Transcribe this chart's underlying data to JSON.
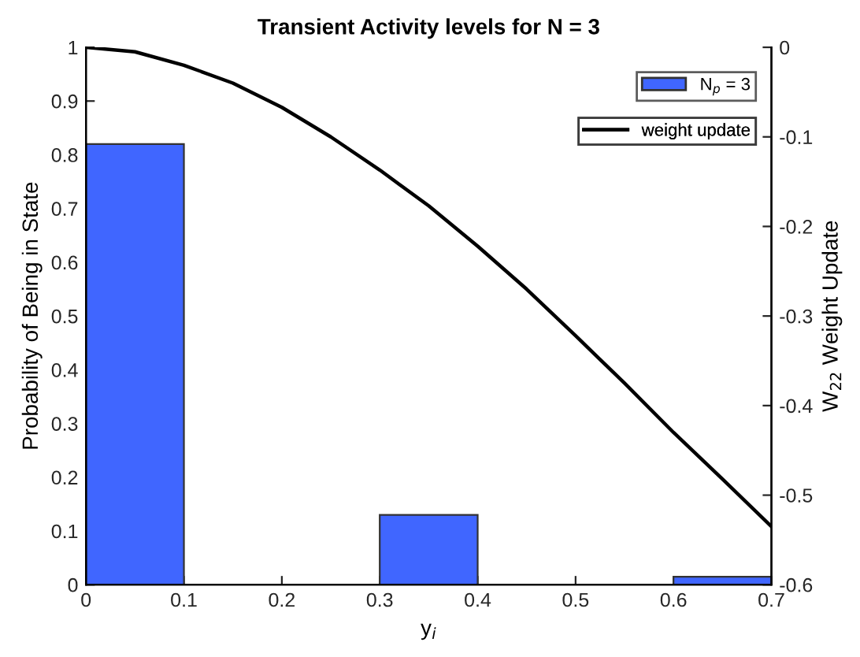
{
  "chart_data": {
    "type": "histogram",
    "title": "Transient Activity levels for N = 3",
    "xlabel": "y$_{i}$",
    "ylabel": "Probability of Being in State",
    "y2label": "W$_{22}$ Weight Update",
    "bins": [
      0,
      0.1,
      0.2,
      0.3,
      0.4,
      0.5,
      0.6,
      0.7
    ],
    "series": [
      {
        "name": "N$_{p}$ = 3",
        "color": "#4066ff",
        "values": [
          0.82,
          0,
          0,
          0.13,
          0,
          0,
          0.015
        ]
      },
      {
        "type": "line",
        "name": "weight update",
        "color": "#000000",
        "axis": "y2",
        "x": [
          0,
          0.05,
          0.1,
          0.15,
          0.2,
          0.25,
          0.3,
          0.35,
          0.4,
          0.45,
          0.5,
          0.55,
          0.6,
          0.65,
          0.7
        ],
        "values": [
          0,
          -0.005,
          -0.02,
          -0.04,
          -0.067,
          -0.1,
          -0.137,
          -0.177,
          -0.222,
          -0.27,
          -0.322,
          -0.375,
          -0.43,
          -0.482,
          -0.535
        ]
      }
    ],
    "xlim": [
      0,
      0.7
    ],
    "xticks": [
      0,
      0.1,
      0.2,
      0.3,
      0.4,
      0.5,
      0.6,
      0.7
    ],
    "ylim": [
      0,
      1
    ],
    "yticks": [
      0,
      0.1,
      0.2,
      0.3,
      0.4,
      0.5,
      0.6,
      0.7,
      0.8,
      0.9,
      1
    ],
    "y2lim": [
      -0.6,
      0
    ],
    "y2ticks": [
      -0.6,
      -0.5,
      -0.4,
      -0.3,
      -0.2,
      -0.1,
      0
    ],
    "legend": "top right",
    "grid": false
  }
}
